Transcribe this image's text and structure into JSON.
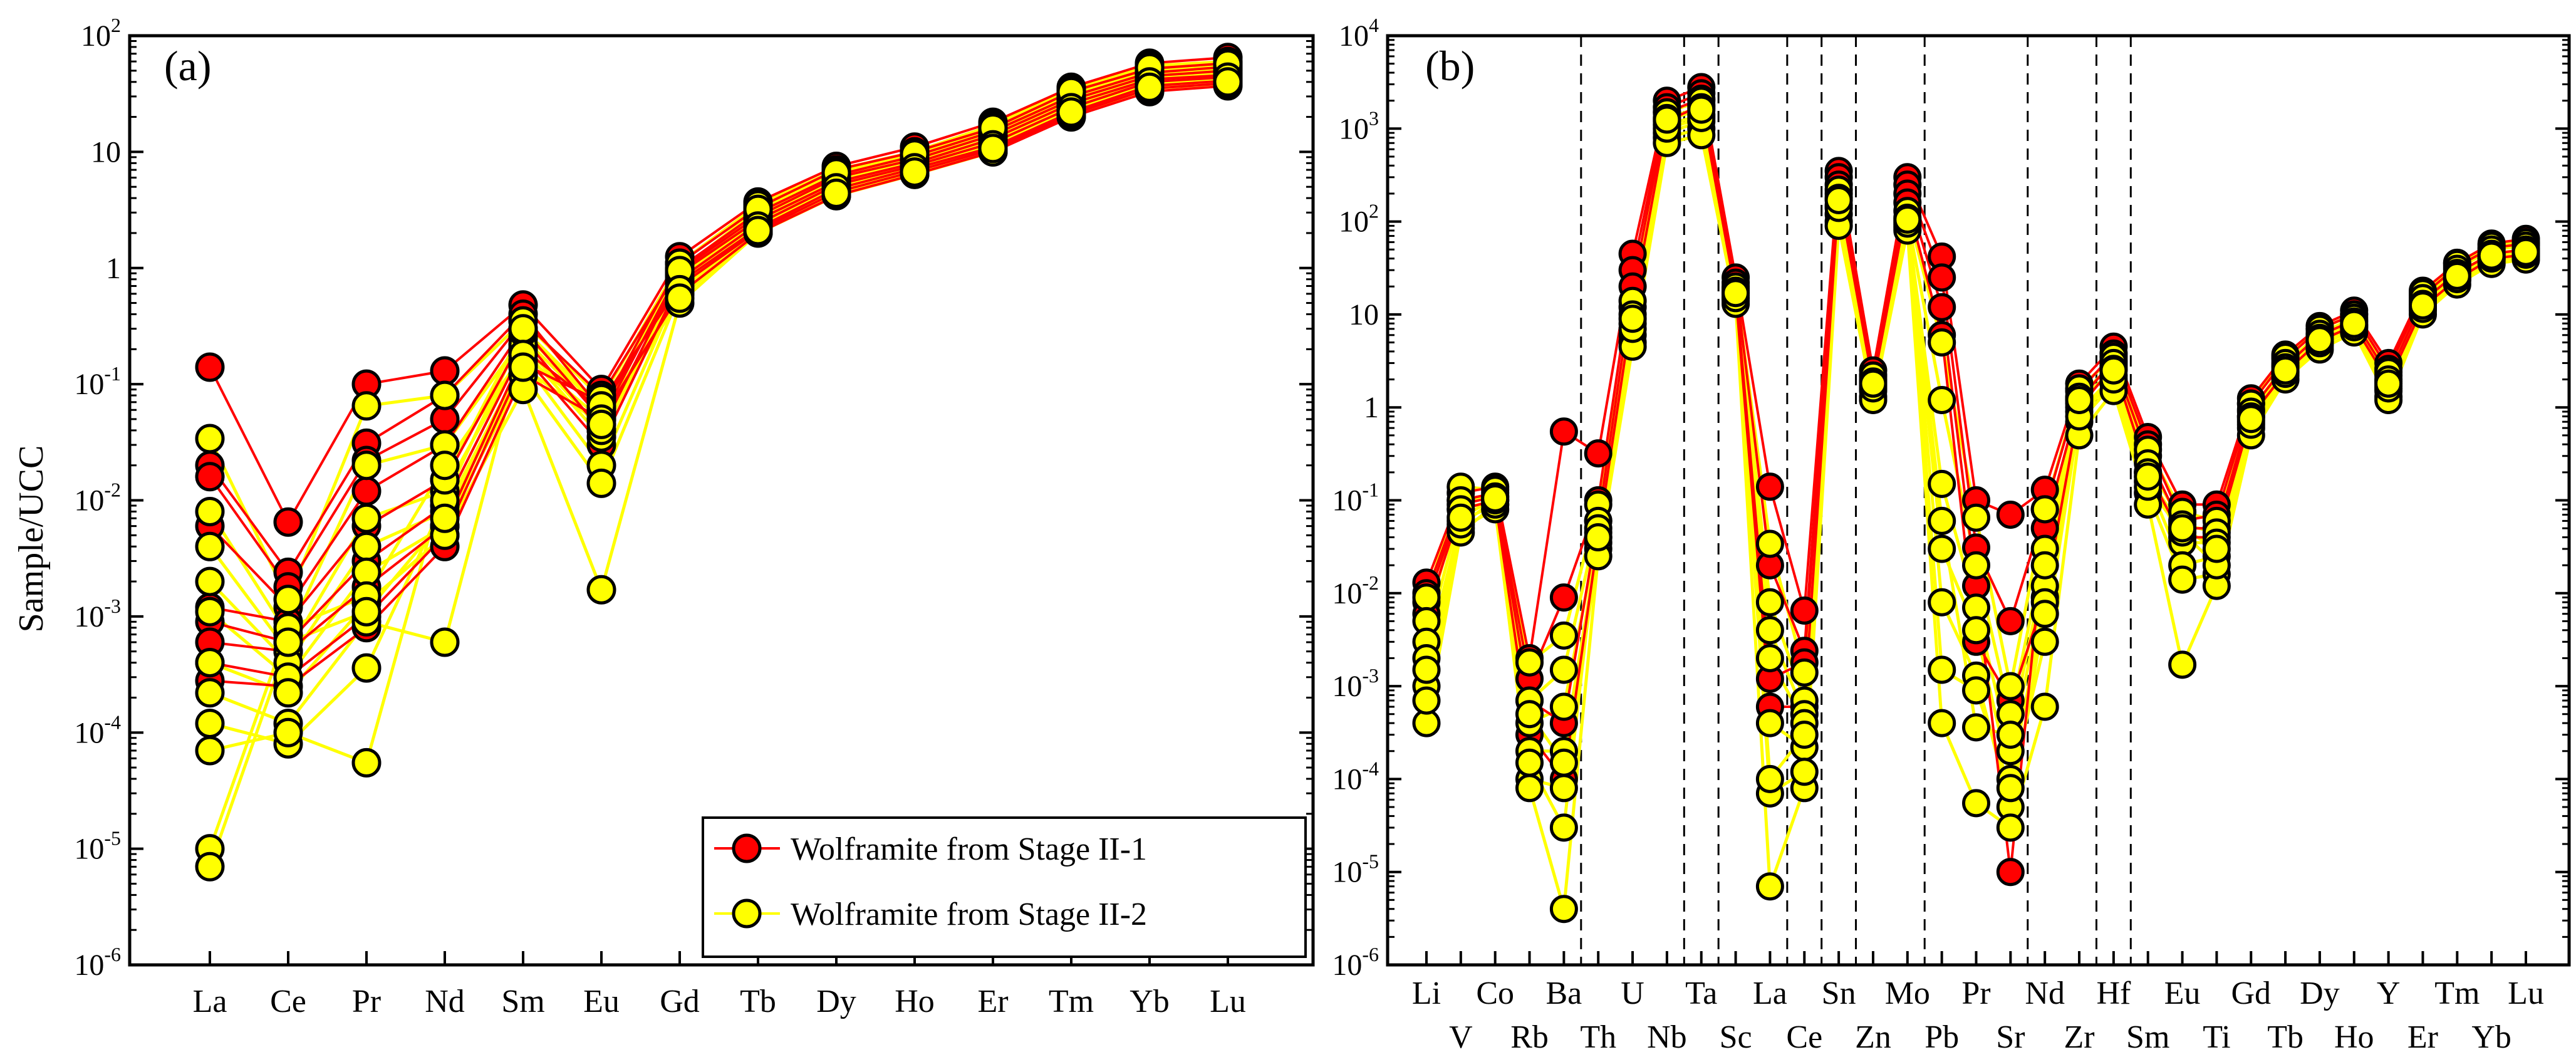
{
  "figure": {
    "ylabel": "Sample/UCC"
  },
  "colors": {
    "stage1": "#ff0000",
    "stage2": "#ffff00",
    "frame": "#000000",
    "grid_dash": "#000000"
  },
  "legend": {
    "items": [
      {
        "label": "Wolframite from Stage II-1",
        "color": "#ff0000"
      },
      {
        "label": "Wolframite from Stage II-2",
        "color": "#ffff00"
      }
    ]
  },
  "chart_data": [
    {
      "panel": "(a)",
      "type": "line",
      "yscale": "log",
      "ylim": [
        1e-06,
        100
      ],
      "ylabel": "Sample/UCC",
      "y_ticks": [
        {
          "value": 100,
          "base": "10",
          "exp": "2"
        },
        {
          "value": 10,
          "base": "10",
          "exp": ""
        },
        {
          "value": 1,
          "base": "1",
          "exp": ""
        },
        {
          "value": 0.1,
          "base": "10",
          "exp": "-1"
        },
        {
          "value": 0.01,
          "base": "10",
          "exp": "-2"
        },
        {
          "value": 0.001,
          "base": "10",
          "exp": "-3"
        },
        {
          "value": 0.0001,
          "base": "10",
          "exp": "-4"
        },
        {
          "value": 1e-05,
          "base": "10",
          "exp": "-5"
        },
        {
          "value": 1e-06,
          "base": "10",
          "exp": "-6"
        }
      ],
      "categories": [
        "La",
        "Ce",
        "Pr",
        "Nd",
        "Sm",
        "Eu",
        "Gd",
        "Tb",
        "Dy",
        "Ho",
        "Er",
        "Tm",
        "Yb",
        "Lu"
      ],
      "legend_position": "bottom-right",
      "series": [
        {
          "name": "Wolframite from Stage II-1",
          "group": "stage1",
          "values": [
            0.14,
            0.0065,
            0.1,
            0.13,
            0.48,
            0.09,
            1.25,
            3.7,
            7.5,
            11,
            18,
            36,
            58,
            65
          ]
        },
        {
          "name": "Wolframite from Stage II-1",
          "group": "stage1",
          "values": [
            0.02,
            0.0024,
            0.031,
            0.08,
            0.4,
            0.06,
            1.1,
            3.3,
            7.0,
            10,
            16,
            33,
            52,
            58
          ]
        },
        {
          "name": "Wolframite from Stage II-1",
          "group": "stage1",
          "values": [
            0.016,
            0.0018,
            0.022,
            0.05,
            0.35,
            0.08,
            1.0,
            3.0,
            6.3,
            9.2,
            15,
            30,
            48,
            54
          ]
        },
        {
          "name": "Wolframite from Stage II-1",
          "group": "stage1",
          "values": [
            0.006,
            0.0012,
            0.012,
            0.03,
            0.3,
            0.05,
            0.95,
            2.8,
            6.0,
            8.6,
            14,
            28,
            45,
            50
          ]
        },
        {
          "name": "Wolframite from Stage II-1",
          "group": "stage1",
          "values": [
            0.0012,
            0.0009,
            0.006,
            0.015,
            0.25,
            0.04,
            0.9,
            2.6,
            5.5,
            8.0,
            13,
            26,
            42,
            46
          ]
        },
        {
          "name": "Wolframite from Stage II-1",
          "group": "stage1",
          "values": [
            0.0009,
            0.0006,
            0.003,
            0.009,
            0.2,
            0.06,
            0.8,
            2.4,
            5.2,
            7.6,
            12,
            24,
            40,
            44
          ]
        },
        {
          "name": "Wolframite from Stage II-1",
          "group": "stage1",
          "values": [
            0.0006,
            0.0005,
            0.0018,
            0.006,
            0.18,
            0.03,
            0.75,
            2.2,
            4.8,
            7.2,
            11,
            22,
            37,
            41
          ]
        },
        {
          "name": "Wolframite from Stage II-1",
          "group": "stage1",
          "values": [
            0.0004,
            0.0003,
            0.001,
            0.005,
            0.15,
            0.07,
            0.7,
            2.1,
            4.5,
            6.8,
            10.5,
            21,
            35,
            39
          ]
        },
        {
          "name": "Wolframite from Stage II-1",
          "group": "stage1",
          "values": [
            0.00028,
            0.00025,
            0.0008,
            0.004,
            0.12,
            0.05,
            0.6,
            2.0,
            4.2,
            6.4,
            10,
            20,
            33,
            37
          ]
        },
        {
          "name": "Wolframite from Stage II-2",
          "group": "stage2",
          "values": [
            0.034,
            0.0014,
            0.065,
            0.08,
            0.35,
            0.075,
            1.1,
            3.5,
            7.0,
            10,
            17,
            35,
            55,
            60
          ]
        },
        {
          "name": "Wolframite from Stage II-2",
          "group": "stage2",
          "values": [
            0.008,
            0.0007,
            0.02,
            0.03,
            0.25,
            0.055,
            0.9,
            3.0,
            6.2,
            9.2,
            15,
            31,
            50,
            55
          ]
        },
        {
          "name": "Wolframite from Stage II-2",
          "group": "stage2",
          "values": [
            0.004,
            0.0005,
            0.007,
            0.012,
            0.2,
            0.035,
            0.8,
            2.7,
            5.6,
            8.4,
            13,
            28,
            45,
            50
          ]
        },
        {
          "name": "Wolframite from Stage II-2",
          "group": "stage2",
          "values": [
            0.002,
            0.0004,
            0.004,
            0.008,
            0.16,
            0.02,
            0.7,
            2.4,
            5.0,
            7.6,
            12,
            25,
            41,
            45
          ]
        },
        {
          "name": "Wolframite from Stage II-2",
          "group": "stage2",
          "values": [
            0.0011,
            0.0003,
            0.0024,
            0.006,
            0.12,
            0.014,
            0.6,
            2.2,
            4.6,
            7.0,
            11,
            23,
            38,
            42
          ]
        },
        {
          "name": "Wolframite from Stage II-2",
          "group": "stage2",
          "values": [
            0.0004,
            0.00022,
            0.0013,
            0.005,
            0.09,
            0.0017,
            0.5,
            2.0,
            4.2,
            6.4,
            10,
            21,
            35,
            39
          ]
        },
        {
          "name": "Wolframite from Stage II-2",
          "group": "stage2",
          "values": [
            0.00022,
            0.00012,
            0.0009,
            0.0006,
            0.22,
            0.04,
            0.75,
            2.5,
            5.3,
            7.9,
            12.5,
            26,
            43,
            47
          ]
        },
        {
          "name": "Wolframite from Stage II-2",
          "group": "stage2",
          "values": [
            0.00012,
            8e-05,
            0.00036,
            0.01,
            0.28,
            0.06,
            0.85,
            2.8,
            5.9,
            8.8,
            14,
            29,
            47,
            52
          ]
        },
        {
          "name": "Wolframite from Stage II-2",
          "group": "stage2",
          "values": [
            7e-05,
            0.0001,
            5.5e-05,
            0.015,
            0.3,
            0.065,
            0.95,
            3.2,
            6.6,
            9.6,
            16,
            33,
            53,
            57
          ]
        },
        {
          "name": "Wolframite from Stage II-2",
          "group": "stage2",
          "values": [
            1e-05,
            0.0008,
            0.0015,
            0.02,
            0.18,
            0.05,
            0.65,
            2.3,
            4.9,
            7.3,
            11.5,
            24,
            40,
            44
          ]
        },
        {
          "name": "Wolframite from Stage II-2",
          "group": "stage2",
          "values": [
            7e-06,
            0.0006,
            0.0011,
            0.007,
            0.14,
            0.045,
            0.55,
            2.1,
            4.4,
            6.7,
            10.7,
            22,
            36,
            40
          ]
        }
      ]
    },
    {
      "panel": "(b)",
      "type": "line",
      "yscale": "log",
      "ylim": [
        1e-06,
        10000
      ],
      "y_ticks": [
        {
          "value": 10000,
          "base": "10",
          "exp": "4"
        },
        {
          "value": 1000,
          "base": "10",
          "exp": "3"
        },
        {
          "value": 100,
          "base": "10",
          "exp": "2"
        },
        {
          "value": 10,
          "base": "10",
          "exp": ""
        },
        {
          "value": 1,
          "base": "1",
          "exp": ""
        },
        {
          "value": 0.1,
          "base": "10",
          "exp": "-1"
        },
        {
          "value": 0.01,
          "base": "10",
          "exp": "-2"
        },
        {
          "value": 0.001,
          "base": "10",
          "exp": "-3"
        },
        {
          "value": 0.0001,
          "base": "10",
          "exp": "-4"
        },
        {
          "value": 1e-05,
          "base": "10",
          "exp": "-5"
        },
        {
          "value": 1e-06,
          "base": "10",
          "exp": "-6"
        }
      ],
      "categories": [
        "Li",
        "V",
        "Co",
        "Rb",
        "Ba",
        "Th",
        "U",
        "Nb",
        "Ta",
        "Sc",
        "La",
        "Ce",
        "Sn",
        "Zn",
        "Mo",
        "Pb",
        "Pr",
        "Sr",
        "Nd",
        "Zr",
        "Hf",
        "Sm",
        "Eu",
        "Ti",
        "Gd",
        "Tb",
        "Dy",
        "Ho",
        "Y",
        "Er",
        "Tm",
        "Yb",
        "Lu"
      ],
      "dashed_after": [
        "Ba",
        "Nb",
        "Ta",
        "La",
        "Ce",
        "Sn",
        "Mo",
        "Sr",
        "Zr",
        "Hf"
      ],
      "series": [
        {
          "name": "Wolframite from Stage II-1",
          "group": "stage1",
          "values": [
            0.013,
            0.12,
            0.14,
            0.002,
            0.55,
            0.32,
            45,
            2000,
            2800,
            25,
            0.14,
            0.0065,
            350,
            2.5,
            300,
            42,
            0.1,
            0.07,
            0.13,
            1.8,
            4.5,
            0.48,
            0.09,
            0.09,
            1.25,
            3.7,
            7.5,
            11,
            3.0,
            18,
            36,
            58,
            65
          ]
        },
        {
          "name": "Wolframite from Stage II-1",
          "group": "stage1",
          "values": [
            0.01,
            0.1,
            0.12,
            0.0012,
            0.009,
            0.1,
            30,
            1700,
            2400,
            22,
            0.02,
            0.0024,
            300,
            2.2,
            250,
            25,
            0.031,
            0.005,
            0.08,
            1.5,
            3.8,
            0.4,
            0.06,
            0.07,
            1.1,
            3.3,
            7.0,
            10,
            2.6,
            16,
            33,
            52,
            58
          ]
        },
        {
          "name": "Wolframite from Stage II-1",
          "group": "stage1",
          "values": [
            0.008,
            0.09,
            0.11,
            0.0007,
            0.0004,
            0.06,
            20,
            1500,
            2100,
            19,
            0.0012,
            0.0018,
            250,
            2.0,
            200,
            12,
            0.012,
            1e-05,
            0.05,
            1.2,
            3.2,
            0.3,
            0.05,
            0.05,
            0.95,
            2.8,
            6.0,
            8.6,
            2.2,
            14,
            28,
            45,
            50
          ]
        },
        {
          "name": "Wolframite from Stage II-1",
          "group": "stage1",
          "values": [
            0.006,
            0.08,
            0.1,
            0.0003,
            0.0001,
            0.04,
            12,
            1200,
            1800,
            17,
            0.0006,
            0.0006,
            200,
            1.8,
            160,
            6,
            0.003,
            0.0007,
            0.009,
            1.0,
            2.8,
            0.2,
            0.04,
            0.04,
            0.8,
            2.4,
            5.2,
            7.6,
            1.9,
            12,
            24,
            40,
            44
          ]
        },
        {
          "name": "Wolframite from Stage II-2",
          "group": "stage2",
          "values": [
            0.009,
            0.14,
            0.13,
            0.0018,
            0.0035,
            0.09,
            14,
            1500,
            2000,
            20,
            0.034,
            0.0014,
            220,
            2.2,
            130,
            5.0,
            0.065,
            0.001,
            0.08,
            1.6,
            3.5,
            0.35,
            0.075,
            0.06,
            1.1,
            3.5,
            7.0,
            10,
            2.4,
            17,
            35,
            55,
            60
          ]
        },
        {
          "name": "Wolframite from Stage II-2",
          "group": "stage2",
          "values": [
            0.005,
            0.1,
            0.11,
            0.0007,
            0.0015,
            0.06,
            10,
            1300,
            1700,
            18,
            0.008,
            0.0007,
            180,
            1.9,
            110,
            1.2,
            0.02,
            0.0005,
            0.03,
            1.3,
            3.0,
            0.25,
            0.055,
            0.045,
            0.9,
            3.0,
            6.2,
            9.2,
            2.0,
            15,
            31,
            50,
            55
          ]
        },
        {
          "name": "Wolframite from Stage II-2",
          "group": "stage2",
          "values": [
            0.003,
            0.08,
            0.1,
            0.0004,
            0.0006,
            0.045,
            8,
            1100,
            1400,
            16,
            0.004,
            0.0005,
            150,
            1.7,
            100,
            0.15,
            0.007,
            0.0002,
            0.012,
            1.1,
            2.6,
            0.2,
            0.035,
            0.035,
            0.8,
            2.7,
            5.6,
            8.4,
            1.7,
            13,
            28,
            45,
            50
          ]
        },
        {
          "name": "Wolframite from Stage II-2",
          "group": "stage2",
          "values": [
            0.002,
            0.06,
            0.09,
            0.0002,
            0.0002,
            0.035,
            6,
            900,
            1200,
            15,
            0.002,
            0.0004,
            120,
            1.5,
            90,
            0.03,
            0.004,
            0.0001,
            0.008,
            0.9,
            2.2,
            0.16,
            0.02,
            0.025,
            0.7,
            2.4,
            5.0,
            7.6,
            1.5,
            12,
            25,
            41,
            45
          ]
        },
        {
          "name": "Wolframite from Stage II-2",
          "group": "stage2",
          "values": [
            0.001,
            0.05,
            0.08,
            0.0001,
            8e-05,
            0.03,
            5,
            800,
            1000,
            14,
            0.0004,
            0.00022,
            100,
            1.3,
            85,
            0.008,
            0.0013,
            5e-05,
            0.006,
            0.7,
            1.8,
            0.12,
            0.014,
            0.016,
            0.6,
            2.2,
            4.6,
            7.0,
            1.3,
            11,
            23,
            38,
            42
          ]
        },
        {
          "name": "Wolframite from Stage II-2",
          "group": "stage2",
          "values": [
            0.0004,
            0.045,
            0.09,
            8e-05,
            4e-06,
            0.025,
            4.5,
            700,
            850,
            13,
            7e-06,
            8e-05,
            90,
            1.2,
            80,
            0.0004,
            5.5e-05,
            3e-05,
            0.0006,
            0.5,
            1.5,
            0.09,
            0.0017,
            0.012,
            0.5,
            2.0,
            4.2,
            6.4,
            1.2,
            10,
            21,
            35,
            39
          ]
        },
        {
          "name": "Wolframite from Stage II-2",
          "group": "stage2",
          "values": [
            0.0007,
            0.055,
            0.1,
            0.00015,
            3e-05,
            0.05,
            7,
            1000,
            1300,
            15,
            7e-05,
            0.00012,
            140,
            1.6,
            95,
            0.0015,
            0.0009,
            8e-05,
            0.003,
            0.8,
            2.0,
            0.14,
            0.045,
            0.02,
            0.65,
            2.3,
            4.9,
            7.3,
            1.6,
            11.5,
            24,
            40,
            44
          ]
        },
        {
          "name": "Wolframite from Stage II-2",
          "group": "stage2",
          "values": [
            0.0015,
            0.065,
            0.105,
            0.0005,
            0.00015,
            0.04,
            9,
            1250,
            1600,
            17,
            0.0001,
            0.0003,
            170,
            1.8,
            105,
            0.06,
            0.00036,
            0.0003,
            0.02,
            1.2,
            2.5,
            0.18,
            0.05,
            0.03,
            0.75,
            2.5,
            5.3,
            7.9,
            1.8,
            12.5,
            26,
            43,
            47
          ]
        }
      ]
    }
  ]
}
